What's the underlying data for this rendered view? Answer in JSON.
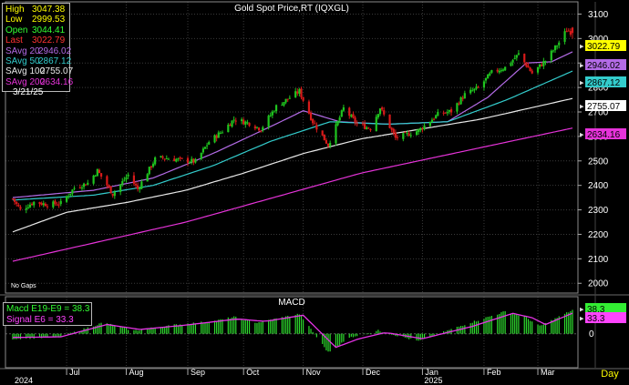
{
  "window": {
    "title": "Gold Spot Price,RT (IQXGL)",
    "no_gaps_label": "No Gaps",
    "day_button": "Day"
  },
  "colors": {
    "background": "#000000",
    "up_candle": "#1fc41f",
    "down_candle": "#d81a1a",
    "savg20": "#b36be6",
    "savg50": "#33cccc",
    "savg100": "#e8e8e8",
    "savg200": "#e633d9",
    "macd": "#2ddb2d",
    "signal": "#e633e6",
    "grid": "#3a3a3a",
    "label_text": "#ffffff"
  },
  "info_box": {
    "rows": [
      {
        "key": "High",
        "value": "3047.38",
        "color": "#ffff00"
      },
      {
        "key": "Low",
        "value": "2999.53",
        "color": "#ffff00"
      },
      {
        "key": "Open",
        "value": "3044.41",
        "color": "#33ff33"
      },
      {
        "key": "Last",
        "value": "3022.79",
        "color": "#ff3333"
      },
      {
        "key": "SAvg 20",
        "value": "2946.02",
        "color": "#b36be6"
      },
      {
        "key": "SAvg 50",
        "value": "2867.12",
        "color": "#33cccc"
      },
      {
        "key": "SAvg 100",
        "value": "2755.07",
        "color": "#e8e8e8"
      },
      {
        "key": "SAvg 200",
        "value": "2634.16",
        "color": "#e633d9"
      }
    ],
    "date": "3/21/25"
  },
  "macd_box": {
    "title": "MACD",
    "rows": [
      {
        "key": "Macd",
        "params": "E19-E9",
        "value": "38.3",
        "color": "#33ff33"
      },
      {
        "key": "Signal",
        "params": "E6",
        "value": "33.3",
        "color": "#ff44ff"
      }
    ]
  },
  "chart_data": [
    {
      "type": "candlestick",
      "title": "Gold Spot Price,RT (IQXGL)",
      "x_labels": [
        {
          "label": "Jul",
          "date": "2024-07-01"
        },
        {
          "label": "Aug",
          "date": "2024-08-01"
        },
        {
          "label": "Sep",
          "date": "2024-09-02"
        },
        {
          "label": "Oct",
          "date": "2024-10-01"
        },
        {
          "label": "Nov",
          "date": "2024-11-01"
        },
        {
          "label": "Dec",
          "date": "2024-12-02"
        },
        {
          "label": "Jan",
          "date": "2025-01-02"
        },
        {
          "label": "Feb",
          "date": "2025-02-03"
        },
        {
          "label": "Mar",
          "date": "2025-03-03"
        }
      ],
      "year_labels": [
        {
          "label": "2024",
          "date": "2024-06-03"
        },
        {
          "label": "2025",
          "date": "2025-01-02"
        }
      ],
      "x_range": [
        "2024-06-03",
        "2025-03-21"
      ],
      "y_ticks": [
        2000,
        2100,
        2200,
        2300,
        2400,
        2500,
        2600,
        2700,
        2800,
        2900,
        3000,
        3100
      ],
      "ylim": [
        1960,
        3150
      ],
      "grid": true,
      "legend": "top-left",
      "price_keypoints": [
        [
          "2024-06-03",
          2345
        ],
        [
          "2024-06-07",
          2300
        ],
        [
          "2024-06-14",
          2332
        ],
        [
          "2024-06-21",
          2322
        ],
        [
          "2024-06-28",
          2327
        ],
        [
          "2024-07-05",
          2390
        ],
        [
          "2024-07-12",
          2410
        ],
        [
          "2024-07-17",
          2460
        ],
        [
          "2024-07-25",
          2365
        ],
        [
          "2024-08-02",
          2443
        ],
        [
          "2024-08-07",
          2385
        ],
        [
          "2024-08-16",
          2507
        ],
        [
          "2024-08-20",
          2513
        ],
        [
          "2024-08-30",
          2503
        ],
        [
          "2024-09-06",
          2497
        ],
        [
          "2024-09-13",
          2578
        ],
        [
          "2024-09-20",
          2622
        ],
        [
          "2024-09-26",
          2670
        ],
        [
          "2024-10-04",
          2654
        ],
        [
          "2024-10-10",
          2630
        ],
        [
          "2024-10-18",
          2722
        ],
        [
          "2024-10-30",
          2785
        ],
        [
          "2024-11-06",
          2660
        ],
        [
          "2024-11-14",
          2565
        ],
        [
          "2024-11-22",
          2715
        ],
        [
          "2024-11-29",
          2650
        ],
        [
          "2024-12-06",
          2633
        ],
        [
          "2024-12-11",
          2718
        ],
        [
          "2024-12-19",
          2593
        ],
        [
          "2024-12-31",
          2624
        ],
        [
          "2025-01-10",
          2690
        ],
        [
          "2025-01-17",
          2703
        ],
        [
          "2025-01-24",
          2771
        ],
        [
          "2025-01-31",
          2798
        ],
        [
          "2025-02-07",
          2861
        ],
        [
          "2025-02-14",
          2882
        ],
        [
          "2025-02-21",
          2936
        ],
        [
          "2025-02-28",
          2858
        ],
        [
          "2025-03-07",
          2910
        ],
        [
          "2025-03-14",
          2984
        ],
        [
          "2025-03-18",
          3035
        ],
        [
          "2025-03-21",
          3022.79
        ]
      ],
      "last_bar": {
        "date": "2025-03-21",
        "open": 3044.41,
        "high": 3047.38,
        "low": 2999.53,
        "close": 3022.79
      },
      "series": [
        {
          "name": "SAvg 20",
          "points": [
            [
              "2024-06-03",
              2350
            ],
            [
              "2024-07-15",
              2380
            ],
            [
              "2024-08-15",
              2430
            ],
            [
              "2024-09-15",
              2530
            ],
            [
              "2024-10-15",
              2640
            ],
            [
              "2024-11-01",
              2705
            ],
            [
              "2024-11-20",
              2660
            ],
            [
              "2024-12-15",
              2650
            ],
            [
              "2025-01-15",
              2660
            ],
            [
              "2025-02-05",
              2760
            ],
            [
              "2025-02-25",
              2900
            ],
            [
              "2025-03-10",
              2905
            ],
            [
              "2025-03-21",
              2946.02
            ]
          ],
          "last": "2946.02"
        },
        {
          "name": "SAvg 50",
          "points": [
            [
              "2024-06-03",
              2340
            ],
            [
              "2024-07-15",
              2360
            ],
            [
              "2024-08-15",
              2400
            ],
            [
              "2024-09-15",
              2480
            ],
            [
              "2024-10-15",
              2580
            ],
            [
              "2024-11-15",
              2660
            ],
            [
              "2024-12-15",
              2650
            ],
            [
              "2025-01-15",
              2660
            ],
            [
              "2025-02-15",
              2750
            ],
            [
              "2025-03-21",
              2867.12
            ]
          ],
          "last": "2867.12"
        },
        {
          "name": "SAvg 100",
          "points": [
            [
              "2024-06-03",
              2210
            ],
            [
              "2024-07-01",
              2290
            ],
            [
              "2024-08-01",
              2330
            ],
            [
              "2024-09-01",
              2380
            ],
            [
              "2024-10-01",
              2450
            ],
            [
              "2024-11-01",
              2530
            ],
            [
              "2024-12-01",
              2590
            ],
            [
              "2025-01-01",
              2630
            ],
            [
              "2025-02-01",
              2670
            ],
            [
              "2025-03-21",
              2755.07
            ]
          ],
          "last": "2755.07"
        },
        {
          "name": "SAvg 200",
          "points": [
            [
              "2024-06-03",
              2090
            ],
            [
              "2024-09-01",
              2250
            ],
            [
              "2024-12-01",
              2450
            ],
            [
              "2025-03-21",
              2634.16
            ]
          ],
          "last": "2634.16"
        }
      ],
      "last_price": "3022.79"
    },
    {
      "type": "bar",
      "title": "MACD",
      "ylim": [
        -55,
        60
      ],
      "y_ticks": [
        0
      ],
      "series": [
        {
          "name": "Macd E19-E9",
          "keypoints": [
            [
              "2024-06-03",
              -8
            ],
            [
              "2024-06-28",
              -5
            ],
            [
              "2024-07-20",
              18
            ],
            [
              "2024-08-05",
              5
            ],
            [
              "2024-08-28",
              15
            ],
            [
              "2024-09-15",
              20
            ],
            [
              "2024-09-26",
              27
            ],
            [
              "2024-10-08",
              18
            ],
            [
              "2024-10-30",
              32
            ],
            [
              "2024-11-14",
              -30
            ],
            [
              "2024-11-26",
              -5
            ],
            [
              "2024-12-10",
              5
            ],
            [
              "2024-12-31",
              -12
            ],
            [
              "2025-01-24",
              15
            ],
            [
              "2025-02-14",
              36
            ],
            [
              "2025-02-24",
              28
            ],
            [
              "2025-03-04",
              12
            ],
            [
              "2025-03-21",
              38.3
            ]
          ],
          "last": "38.3"
        },
        {
          "name": "Signal E6",
          "keypoints": [
            [
              "2024-06-03",
              -6
            ],
            [
              "2024-06-28",
              -5
            ],
            [
              "2024-07-22",
              15
            ],
            [
              "2024-08-08",
              7
            ],
            [
              "2024-09-01",
              14
            ],
            [
              "2024-09-28",
              24
            ],
            [
              "2024-10-12",
              20
            ],
            [
              "2024-11-01",
              30
            ],
            [
              "2024-11-18",
              -22
            ],
            [
              "2024-11-30",
              -8
            ],
            [
              "2024-12-14",
              2
            ],
            [
              "2025-01-02",
              -8
            ],
            [
              "2025-01-28",
              12
            ],
            [
              "2025-02-18",
              33
            ],
            [
              "2025-02-28",
              26
            ],
            [
              "2025-03-07",
              15
            ],
            [
              "2025-03-21",
              33.3
            ]
          ],
          "last": "33.3"
        }
      ]
    }
  ]
}
